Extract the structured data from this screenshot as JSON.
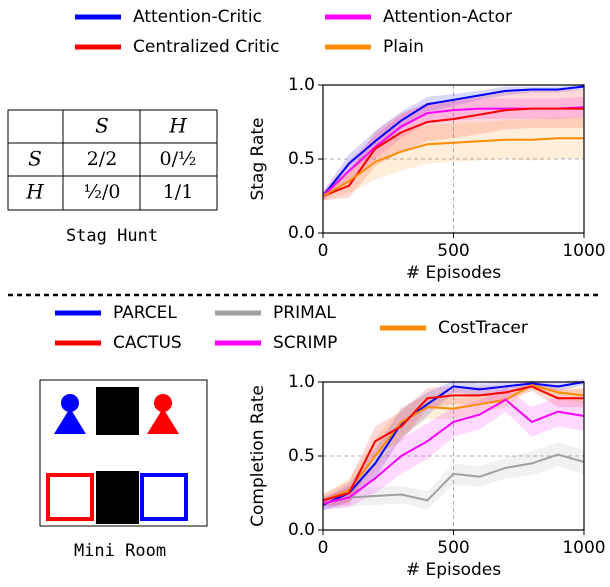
{
  "chart_data": [
    {
      "type": "line",
      "xlabel": "# Episodes",
      "ylabel": "Stag Rate",
      "x": [
        0,
        100,
        200,
        300,
        400,
        500,
        600,
        700,
        800,
        900,
        1000
      ],
      "xlim": [
        0,
        1000
      ],
      "xticks": [
        0,
        500,
        1000
      ],
      "ylim": [
        0,
        1
      ],
      "yticks": [
        {
          "value": 0,
          "label": "0.0"
        },
        {
          "value": 0.5,
          "label": "0.5"
        },
        {
          "value": 1,
          "label": "1.0"
        }
      ],
      "grid": true,
      "series": [
        {
          "name": "Attention-Critic",
          "color": "#0000ff",
          "values": [
            0.25,
            0.47,
            0.62,
            0.76,
            0.87,
            0.9,
            0.93,
            0.96,
            0.97,
            0.97,
            0.99
          ],
          "std": [
            0.03,
            0.06,
            0.07,
            0.06,
            0.05,
            0.04,
            0.03,
            0.03,
            0.02,
            0.02,
            0.02
          ]
        },
        {
          "name": "Attention-Actor",
          "color": "#ff00ff",
          "values": [
            0.25,
            0.42,
            0.58,
            0.72,
            0.81,
            0.83,
            0.84,
            0.84,
            0.84,
            0.84,
            0.85
          ],
          "std": [
            0.03,
            0.07,
            0.08,
            0.08,
            0.07,
            0.07,
            0.07,
            0.07,
            0.07,
            0.07,
            0.07
          ]
        },
        {
          "name": "Centralized Critic",
          "color": "#ff0000",
          "values": [
            0.25,
            0.32,
            0.57,
            0.68,
            0.75,
            0.77,
            0.8,
            0.83,
            0.84,
            0.84,
            0.84
          ],
          "std": [
            0.03,
            0.08,
            0.12,
            0.13,
            0.13,
            0.13,
            0.13,
            0.13,
            0.13,
            0.13,
            0.13
          ]
        },
        {
          "name": "Plain",
          "color": "#ff8c00",
          "values": [
            0.25,
            0.35,
            0.48,
            0.55,
            0.6,
            0.61,
            0.62,
            0.63,
            0.63,
            0.64,
            0.64
          ],
          "std": [
            0.03,
            0.08,
            0.12,
            0.13,
            0.13,
            0.13,
            0.13,
            0.13,
            0.14,
            0.14,
            0.14
          ]
        }
      ]
    },
    {
      "type": "line",
      "xlabel": "# Episodes",
      "ylabel": "Completion Rate",
      "x": [
        0,
        100,
        200,
        300,
        400,
        500,
        600,
        700,
        800,
        900,
        1000
      ],
      "xlim": [
        0,
        1000
      ],
      "xticks": [
        0,
        500,
        1000
      ],
      "ylim": [
        0,
        1
      ],
      "yticks": [
        {
          "value": 0,
          "label": "0.0"
        },
        {
          "value": 0.5,
          "label": "0.5"
        },
        {
          "value": 1,
          "label": "1.0"
        }
      ],
      "grid": true,
      "series": [
        {
          "name": "PARCEL",
          "color": "#0000ff",
          "values": [
            0.17,
            0.25,
            0.45,
            0.72,
            0.85,
            0.97,
            0.95,
            0.97,
            0.99,
            0.97,
            1.0
          ],
          "std": [
            0.04,
            0.06,
            0.1,
            0.1,
            0.08,
            0.04,
            0.04,
            0.03,
            0.02,
            0.03,
            0.02
          ]
        },
        {
          "name": "PRIMAL",
          "color": "#a0a0a0",
          "values": [
            0.18,
            0.22,
            0.23,
            0.24,
            0.2,
            0.38,
            0.36,
            0.42,
            0.45,
            0.51,
            0.46
          ],
          "std": [
            0.04,
            0.06,
            0.06,
            0.06,
            0.06,
            0.07,
            0.07,
            0.07,
            0.08,
            0.08,
            0.08
          ]
        },
        {
          "name": "CostTracer",
          "color": "#ff8c00",
          "values": [
            0.2,
            0.27,
            0.5,
            0.73,
            0.83,
            0.82,
            0.85,
            0.88,
            0.98,
            0.93,
            0.91
          ],
          "std": [
            0.04,
            0.08,
            0.12,
            0.1,
            0.08,
            0.07,
            0.06,
            0.05,
            0.03,
            0.05,
            0.05
          ]
        },
        {
          "name": "CACTUS",
          "color": "#ff0000",
          "values": [
            0.2,
            0.25,
            0.6,
            0.7,
            0.89,
            0.91,
            0.91,
            0.93,
            0.97,
            0.89,
            0.89
          ],
          "std": [
            0.04,
            0.08,
            0.1,
            0.1,
            0.07,
            0.06,
            0.06,
            0.05,
            0.03,
            0.06,
            0.06
          ]
        },
        {
          "name": "SCRIMP",
          "color": "#ff00ff",
          "values": [
            0.18,
            0.22,
            0.35,
            0.5,
            0.6,
            0.73,
            0.78,
            0.88,
            0.73,
            0.8,
            0.77
          ],
          "std": [
            0.04,
            0.07,
            0.1,
            0.12,
            0.12,
            0.1,
            0.1,
            0.08,
            0.1,
            0.1,
            0.1
          ]
        }
      ]
    }
  ],
  "table": {
    "columns": [
      "S",
      "H"
    ],
    "rows": [
      {
        "label": "S",
        "cells": [
          "2/2",
          "0/½"
        ]
      },
      {
        "label": "H",
        "cells": [
          "½/0",
          "1/1"
        ]
      }
    ],
    "caption": "Stag Hunt"
  },
  "diagram": {
    "caption": "Mini Room"
  }
}
